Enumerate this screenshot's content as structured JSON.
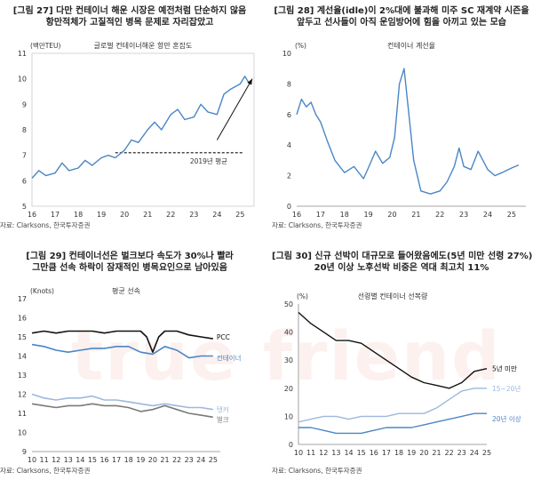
{
  "watermark": "true friend",
  "panels": [
    {
      "title_line1": "[그림 27] 다만 컨테이너 해운 시장은 예전처럼 단순하지 않음",
      "title_line2": "항만적체가 고질적인 병목 문제로 자리잡았고",
      "source": "자료: Clarksons, 한국투자증권"
    },
    {
      "title_line1": "[그림 28] 계선율(idle)이 2%대에 불과해 미주 SC 재계약 시즌을",
      "title_line2": "앞두고 선사들이 아직 운임방어에 힘을 아끼고 있는 모습",
      "source": "자료: Clarksons, 한국투자증권"
    },
    {
      "title_line1": "[그림 29] 컨테이너선은 벌크보다 속도가 30%나 빨라",
      "title_line2": "그만큼 선속 하락이 잠재적인 병목요인으로 남아있음",
      "source": "자료: Clarksons, 한국투자증권"
    },
    {
      "title_line1": "[그림 30] 신규 선박이 대규모로 들어왔음에도(5년 미만 선령 27%)",
      "title_line2": "20년 이상 노후선박 비중은 역대 최고치 11%",
      "source": "자료: Clarksons, 한국투자증권"
    }
  ],
  "chart_data": [
    {
      "type": "line",
      "title": "글로벌 컨테이너해운 항만 혼잡도",
      "unit_label": "(백만TEU)",
      "xlim": [
        2016,
        2025.6
      ],
      "ylim": [
        5,
        11
      ],
      "x_ticks": [
        16,
        17,
        18,
        19,
        20,
        21,
        22,
        23,
        24,
        25
      ],
      "y_ticks": [
        5,
        6,
        7,
        8,
        9,
        10,
        11
      ],
      "reference": {
        "label": "2019년 평균",
        "value": 7.1
      },
      "annotation": "upward trend arrow",
      "series": [
        {
          "name": "항만 혼잡도",
          "color": "#4a86c5",
          "x": [
            2016.0,
            2016.3,
            2016.6,
            2017.0,
            2017.3,
            2017.6,
            2018.0,
            2018.3,
            2018.6,
            2019.0,
            2019.3,
            2019.6,
            2020.0,
            2020.3,
            2020.6,
            2021.0,
            2021.3,
            2021.6,
            2022.0,
            2022.3,
            2022.6,
            2023.0,
            2023.3,
            2023.6,
            2024.0,
            2024.3,
            2024.6,
            2025.0,
            2025.2,
            2025.4
          ],
          "y": [
            6.1,
            6.4,
            6.2,
            6.3,
            6.7,
            6.4,
            6.5,
            6.8,
            6.6,
            6.9,
            7.0,
            6.9,
            7.2,
            7.6,
            7.5,
            8.0,
            8.3,
            8.0,
            8.6,
            8.8,
            8.4,
            8.5,
            9.0,
            8.7,
            8.6,
            9.4,
            9.6,
            9.8,
            10.1,
            9.8
          ]
        }
      ]
    },
    {
      "type": "line",
      "title": "컨테이너 계선율",
      "unit_label": "(%)",
      "xlim": [
        2016,
        2025.6
      ],
      "ylim": [
        0,
        10
      ],
      "x_ticks": [
        16,
        17,
        18,
        19,
        20,
        21,
        22,
        23,
        24,
        25
      ],
      "y_ticks": [
        0,
        2,
        4,
        6,
        8,
        10
      ],
      "series": [
        {
          "name": "계선율",
          "color": "#4a86c5",
          "x": [
            2016.0,
            2016.2,
            2016.4,
            2016.6,
            2016.8,
            2017.0,
            2017.3,
            2017.6,
            2018.0,
            2018.4,
            2018.8,
            2019.0,
            2019.3,
            2019.6,
            2019.9,
            2020.1,
            2020.3,
            2020.5,
            2020.7,
            2020.9,
            2021.2,
            2021.6,
            2022.0,
            2022.3,
            2022.6,
            2022.8,
            2023.0,
            2023.3,
            2023.6,
            2024.0,
            2024.3,
            2024.6,
            2025.0,
            2025.3
          ],
          "y": [
            6.0,
            7.0,
            6.5,
            6.8,
            6.0,
            5.5,
            4.2,
            3.0,
            2.2,
            2.6,
            1.8,
            2.5,
            3.6,
            2.8,
            3.2,
            4.5,
            8.0,
            9.0,
            6.0,
            3.0,
            1.0,
            0.8,
            1.0,
            1.6,
            2.6,
            3.8,
            2.6,
            2.4,
            3.6,
            2.4,
            2.0,
            2.2,
            2.5,
            2.7
          ]
        }
      ]
    },
    {
      "type": "line",
      "title": "평균 선속",
      "unit_label": "(Knots)",
      "xlim": [
        2010,
        2025.6
      ],
      "ylim": [
        9,
        17
      ],
      "x_ticks": [
        10,
        11,
        12,
        13,
        14,
        15,
        16,
        17,
        18,
        19,
        20,
        21,
        22,
        23,
        24,
        25
      ],
      "y_ticks": [
        9,
        10,
        11,
        12,
        13,
        14,
        15,
        16,
        17
      ],
      "series": [
        {
          "name": "PCC",
          "color": "#111111",
          "x": [
            2010.0,
            2011.0,
            2012.0,
            2013.0,
            2014.0,
            2015.0,
            2016.0,
            2017.0,
            2018.0,
            2019.0,
            2019.5,
            2020.0,
            2020.5,
            2021.0,
            2022.0,
            2023.0,
            2024.0,
            2025.0
          ],
          "y": [
            15.2,
            15.3,
            15.2,
            15.3,
            15.3,
            15.3,
            15.2,
            15.3,
            15.3,
            15.3,
            15.0,
            14.2,
            15.0,
            15.3,
            15.3,
            15.1,
            15.0,
            14.9
          ]
        },
        {
          "name": "컨테이너",
          "color": "#4a86c5",
          "x": [
            2010.0,
            2011.0,
            2012.0,
            2013.0,
            2014.0,
            2015.0,
            2016.0,
            2017.0,
            2018.0,
            2019.0,
            2020.0,
            2021.0,
            2022.0,
            2023.0,
            2024.0,
            2025.0
          ],
          "y": [
            14.6,
            14.5,
            14.3,
            14.2,
            14.3,
            14.4,
            14.4,
            14.5,
            14.5,
            14.2,
            14.1,
            14.5,
            14.3,
            13.9,
            14.0,
            14.0
          ]
        },
        {
          "name": "탱커",
          "color": "#9db8de",
          "x": [
            2010.0,
            2011.0,
            2012.0,
            2013.0,
            2014.0,
            2015.0,
            2016.0,
            2017.0,
            2018.0,
            2019.0,
            2020.0,
            2021.0,
            2022.0,
            2023.0,
            2024.0,
            2025.0
          ],
          "y": [
            12.0,
            11.8,
            11.7,
            11.8,
            11.8,
            11.9,
            11.7,
            11.7,
            11.6,
            11.5,
            11.4,
            11.5,
            11.4,
            11.3,
            11.3,
            11.2
          ]
        },
        {
          "name": "벌크",
          "color": "#7a7a7a",
          "x": [
            2010.0,
            2011.0,
            2012.0,
            2013.0,
            2014.0,
            2015.0,
            2016.0,
            2017.0,
            2018.0,
            2019.0,
            2020.0,
            2021.0,
            2022.0,
            2023.0,
            2024.0,
            2025.0
          ],
          "y": [
            11.5,
            11.4,
            11.3,
            11.4,
            11.4,
            11.5,
            11.4,
            11.4,
            11.3,
            11.1,
            11.2,
            11.4,
            11.2,
            11.0,
            10.9,
            10.8
          ]
        }
      ]
    },
    {
      "type": "line",
      "title": "선령별 컨테이너 선복량",
      "unit_label": "(%)",
      "xlim": [
        2010,
        2025
      ],
      "ylim": [
        0,
        50
      ],
      "x_ticks": [
        10,
        11,
        12,
        13,
        14,
        15,
        16,
        17,
        18,
        19,
        20,
        21,
        22,
        23,
        24,
        25
      ],
      "y_ticks": [
        0,
        10,
        20,
        30,
        40,
        50
      ],
      "series": [
        {
          "name": "5년 미만",
          "color": "#111111",
          "x": [
            2010,
            2011,
            2012,
            2013,
            2014,
            2015,
            2016,
            2017,
            2018,
            2019,
            2020,
            2021,
            2022,
            2023,
            2024,
            2025
          ],
          "y": [
            47,
            43,
            40,
            37,
            37,
            36,
            33,
            30,
            27,
            24,
            22,
            21,
            20,
            22,
            26,
            27
          ]
        },
        {
          "name": "15~20년",
          "color": "#9db8de",
          "x": [
            2010,
            2011,
            2012,
            2013,
            2014,
            2015,
            2016,
            2017,
            2018,
            2019,
            2020,
            2021,
            2022,
            2023,
            2024,
            2025
          ],
          "y": [
            8,
            9,
            10,
            10,
            9,
            10,
            10,
            10,
            11,
            11,
            11,
            13,
            16,
            19,
            20,
            20
          ]
        },
        {
          "name": "20년 이상",
          "color": "#4a86c5",
          "x": [
            2010,
            2011,
            2012,
            2013,
            2014,
            2015,
            2016,
            2017,
            2018,
            2019,
            2020,
            2021,
            2022,
            2023,
            2024,
            2025
          ],
          "y": [
            6,
            6,
            5,
            4,
            4,
            4,
            5,
            6,
            6,
            6,
            7,
            8,
            9,
            10,
            11,
            11
          ]
        }
      ]
    }
  ]
}
